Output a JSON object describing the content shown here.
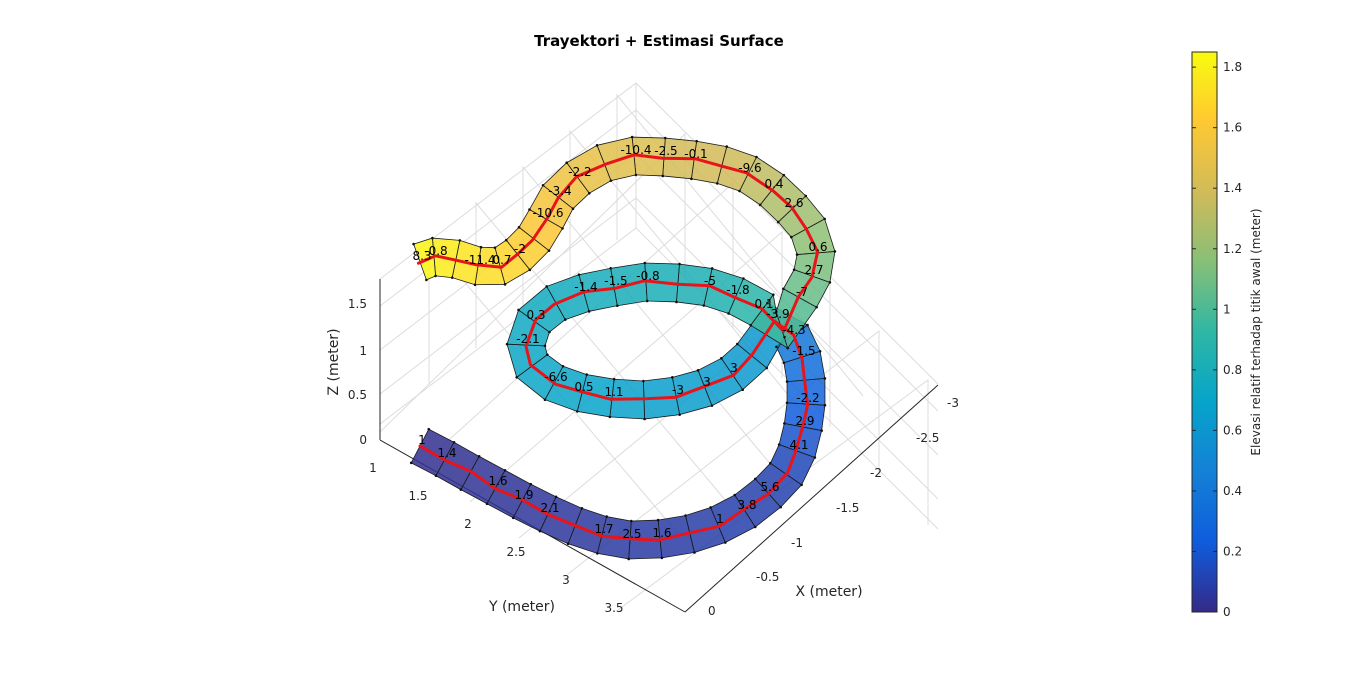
{
  "chart_data": {
    "type": "surface3d",
    "title": "Trayektori + Estimasi Surface",
    "xlabel": "X (meter)",
    "ylabel": "Y (meter)",
    "zlabel": "Z (meter)",
    "colorbar_label": "Elevasi relatif terhadap titik awal (meter)",
    "x_ticks": [
      "-3",
      "-2.5",
      "-2",
      "-1.5",
      "-1",
      "-0.5",
      "0"
    ],
    "y_ticks": [
      "1",
      "1.5",
      "2",
      "2.5",
      "3",
      "3.5"
    ],
    "z_ticks": [
      "0",
      "0.5",
      "1",
      "1.5"
    ],
    "colorbar_ticks": [
      "0",
      "0.2",
      "0.4",
      "0.6",
      "0.8",
      "1",
      "1.2",
      "1.4",
      "1.6",
      "1.8"
    ],
    "xlim": [
      -3,
      0
    ],
    "ylim": [
      1,
      3.7
    ],
    "zlim": [
      0,
      1.85
    ],
    "colormap": "parula",
    "grid": true,
    "segment_labels": [
      "1",
      "1.4",
      "1.6",
      "1.9",
      "2.1",
      "1.7",
      "2.5",
      "1.6",
      "1",
      "3.8",
      "5.6",
      "4.1",
      "2.9",
      "-2.2",
      "-1.5",
      "-4.3",
      "-3.9",
      "3",
      "3",
      "-3",
      "1.1",
      "0.5",
      "-6.6",
      "-2.1",
      "0.3",
      "-1.4",
      "-1.5",
      "-0.8",
      "-5",
      "-1.8",
      "0.1",
      "-7",
      "2.7",
      "0.6",
      "2.6",
      "0.4",
      "-9.6",
      "-0.1",
      "-2.5",
      "-10.4",
      "-2.2",
      "-3.4",
      "-10.6",
      "-2",
      "0.7",
      "-11.4",
      "-0.8",
      "8.3"
    ]
  }
}
